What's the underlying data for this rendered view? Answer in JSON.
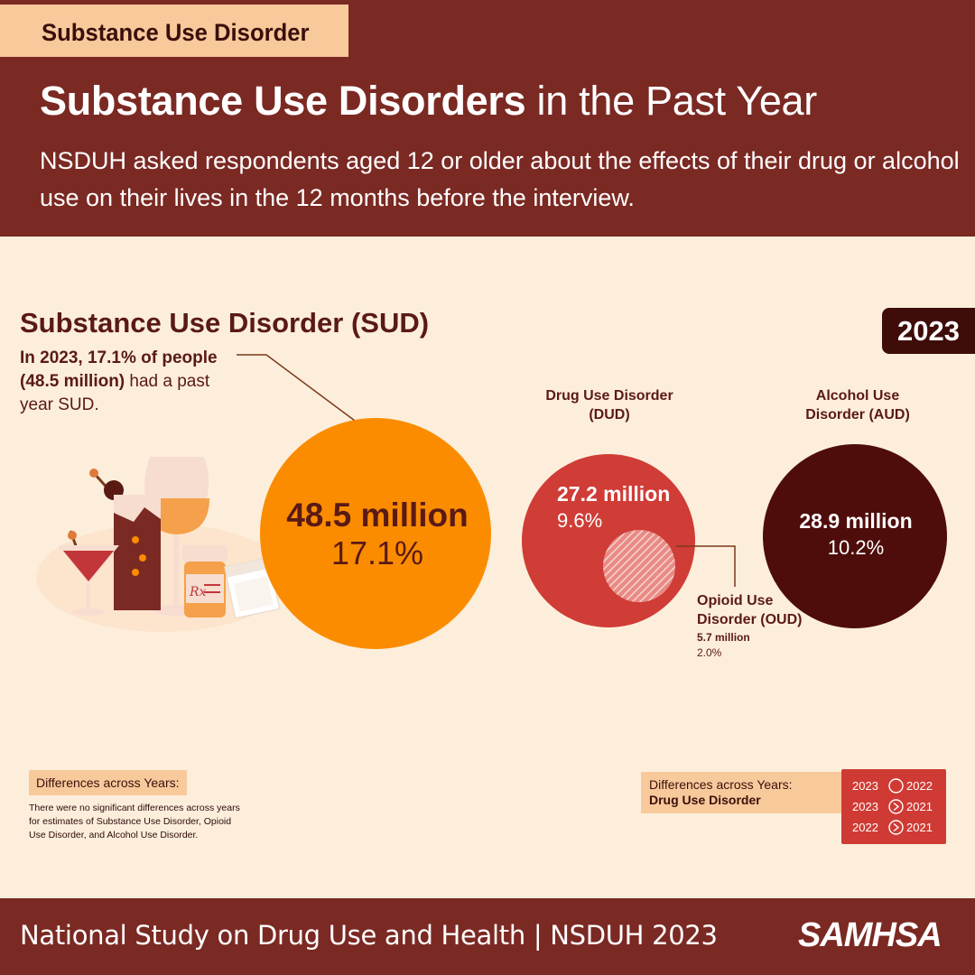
{
  "tag": "Substance Use Disorder",
  "title": {
    "bold": "Substance Use Disorders",
    "regular": " in the Past Year"
  },
  "subtitle": "NSDUH asked respondents aged 12 or older about the effects of their drug or alcohol use on their lives in the 12 months before the interview.",
  "sud": {
    "heading": "Substance Use Disorder (SUD)",
    "desc_bold": "In 2023, 17.1% of people (48.5 million)",
    "desc_rest": " had a past year SUD.",
    "value": "48.5 million",
    "percent": "17.1%"
  },
  "year": "2023",
  "dud": {
    "label": "Drug Use Disorder (DUD)",
    "value": "27.2 million",
    "percent": "9.6%"
  },
  "aud": {
    "label": "Alcohol Use Disorder (AUD)",
    "value": "28.9 million",
    "percent": "10.2%"
  },
  "oud": {
    "label": "Opioid Use Disorder (OUD)",
    "value": "5.7 million",
    "percent": "2.0%"
  },
  "diff_left": {
    "heading": "Differences across Years:",
    "text": "There were no significant differences across years for estimates of Substance Use Disorder, Opioid Use Disorder, and Alcohol Use Disorder."
  },
  "diff_right": {
    "heading": "Differences across Years:",
    "subheading": "Drug Use Disorder",
    "comparisons": [
      {
        "a": "2023",
        "symbol": "no-difference-circle-icon",
        "b": "2022"
      },
      {
        "a": "2023",
        "symbol": "greater-than-circle-icon",
        "b": "2021"
      },
      {
        "a": "2022",
        "symbol": "greater-than-circle-icon",
        "b": "2021"
      }
    ]
  },
  "colors": {
    "header": "#7b2923",
    "background": "#fdeedc",
    "sud": "#fb8c00",
    "dud": "#d03c36",
    "aud": "#4e0d0b",
    "tag": "#f8c99b"
  },
  "footer": {
    "text": "National Study on Drug Use and Health | NSDUH 2023",
    "logo": "SAMHSA"
  }
}
